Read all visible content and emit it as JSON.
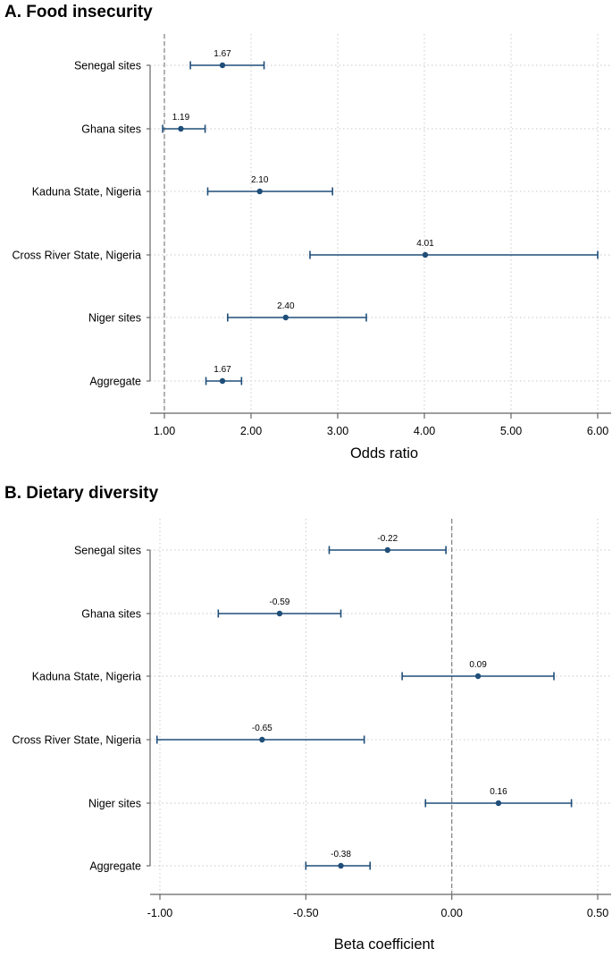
{
  "colors": {
    "marker": "#1f4e79",
    "grid": "#c8c8c8",
    "axis": "#666666",
    "reference": "#888888"
  },
  "chart_data": [
    {
      "type": "forest",
      "title": "A. Food insecurity",
      "xlabel": "Odds ratio",
      "ylabel": "",
      "xlim": [
        1.0,
        6.0
      ],
      "xticks": [
        1.0,
        2.0,
        3.0,
        4.0,
        5.0,
        6.0
      ],
      "tick_labels": [
        "1.00",
        "2.00",
        "3.00",
        "4.00",
        "5.00",
        "6.00"
      ],
      "reference_line": 1.0,
      "categories": [
        "Senegal sites",
        "Ghana sites",
        "Kaduna State, Nigeria",
        "Cross River State, Nigeria",
        "Niger sites",
        "Aggregate"
      ],
      "estimates": [
        1.67,
        1.19,
        2.1,
        4.01,
        2.4,
        1.67
      ],
      "labels": [
        "1.67",
        "1.19",
        "2.10",
        "4.01",
        "2.40",
        "1.67"
      ],
      "ci_low": [
        1.3,
        0.98,
        1.5,
        2.68,
        1.73,
        1.48
      ],
      "ci_high": [
        2.15,
        1.47,
        2.94,
        6.0,
        3.33,
        1.89
      ]
    },
    {
      "type": "forest",
      "title": "B. Dietary diversity",
      "xlabel": "Beta coefficient",
      "ylabel": "",
      "xlim": [
        -1.0,
        0.5
      ],
      "xticks": [
        -1.0,
        -0.5,
        0.0,
        0.5
      ],
      "tick_labels": [
        "-1.00",
        "-0.50",
        "0.00",
        "0.50"
      ],
      "reference_line": 0.0,
      "categories": [
        "Senegal sites",
        "Ghana sites",
        "Kaduna State, Nigeria",
        "Cross River State, Nigeria",
        "Niger sites",
        "Aggregate"
      ],
      "estimates": [
        -0.22,
        -0.59,
        0.09,
        -0.65,
        0.16,
        -0.38
      ],
      "labels": [
        "-0.22",
        "-0.59",
        "0.09",
        "-0.65",
        "0.16",
        "-0.38"
      ],
      "ci_low": [
        -0.42,
        -0.8,
        -0.17,
        -1.01,
        -0.09,
        -0.5
      ],
      "ci_high": [
        -0.02,
        -0.38,
        0.35,
        -0.3,
        0.41,
        -0.28
      ]
    }
  ]
}
